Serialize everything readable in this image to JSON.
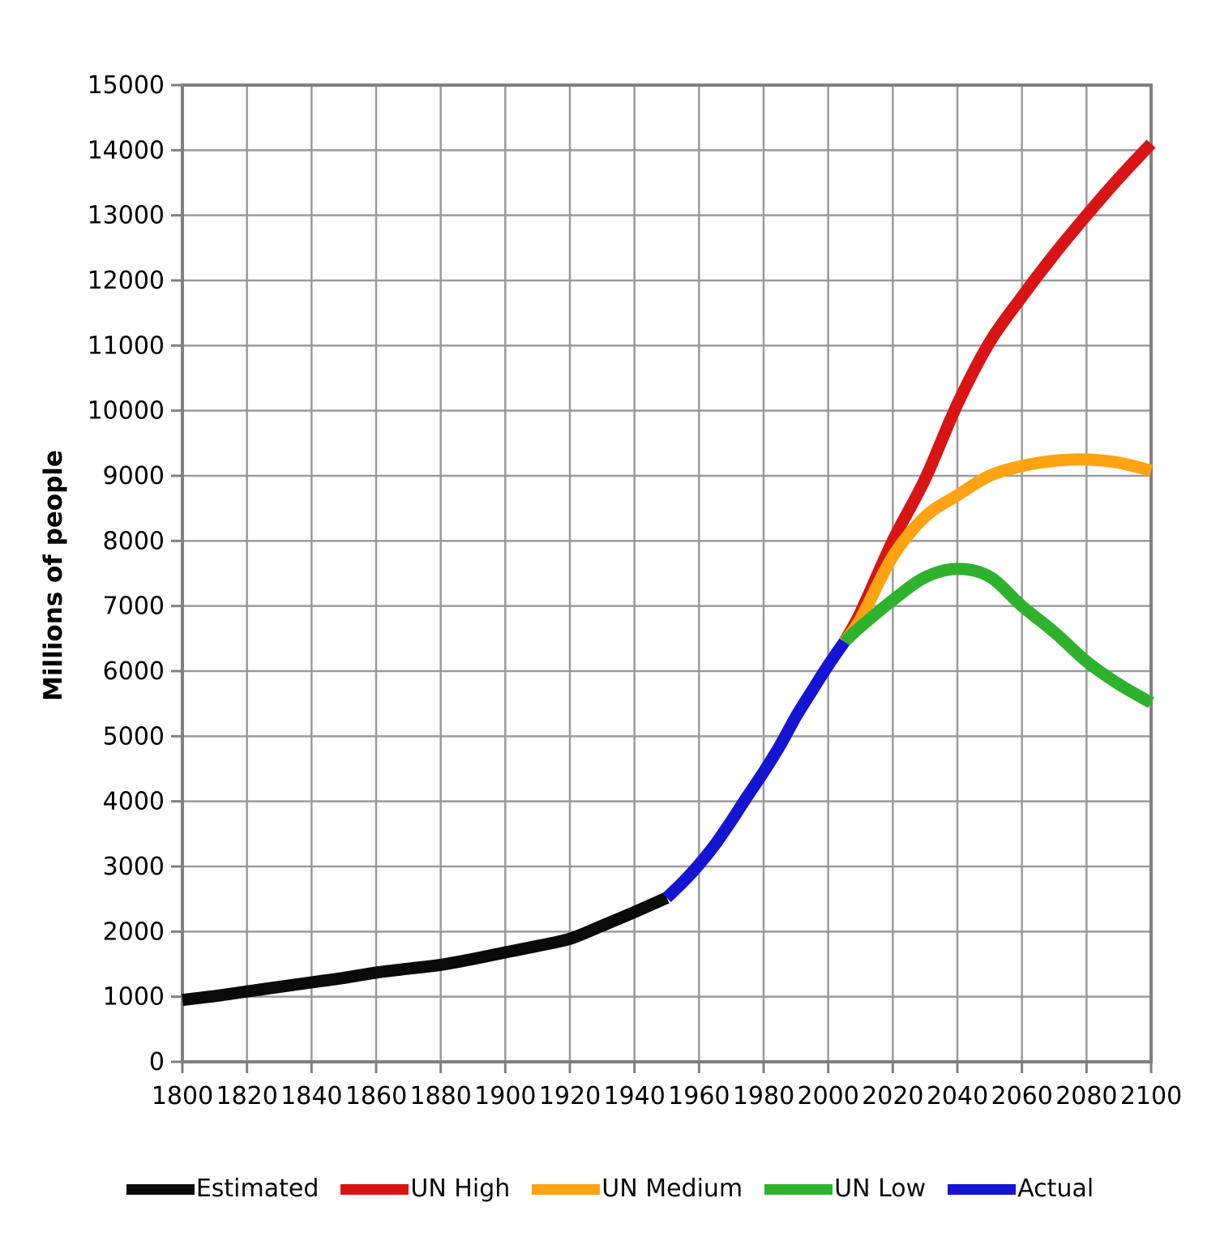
{
  "chart_data": {
    "type": "line",
    "title": "",
    "xlabel": "",
    "ylabel": "Millions of people",
    "xlim": [
      1800,
      2100
    ],
    "ylim": [
      0,
      15000
    ],
    "x_ticks": [
      1800,
      1820,
      1840,
      1860,
      1880,
      1900,
      1920,
      1940,
      1960,
      1980,
      2000,
      2020,
      2040,
      2060,
      2080,
      2100
    ],
    "y_ticks": [
      0,
      1000,
      2000,
      3000,
      4000,
      5000,
      6000,
      7000,
      8000,
      9000,
      10000,
      11000,
      12000,
      13000,
      14000,
      15000
    ],
    "grid": true,
    "legend_position": "bottom",
    "series": [
      {
        "name": "Estimated",
        "color": "#0a0a0a",
        "x": [
          1800,
          1810,
          1820,
          1830,
          1840,
          1850,
          1860,
          1870,
          1880,
          1890,
          1900,
          1910,
          1920,
          1930,
          1940,
          1950
        ],
        "y": [
          950,
          1010,
          1080,
          1150,
          1220,
          1290,
          1370,
          1430,
          1490,
          1580,
          1680,
          1780,
          1890,
          2090,
          2300,
          2520
        ]
      },
      {
        "name": "UN High",
        "color": "#d81414",
        "x": [
          2005,
          2010,
          2020,
          2030,
          2040,
          2050,
          2060,
          2070,
          2080,
          2090,
          2100
        ],
        "y": [
          6450,
          6900,
          8000,
          8950,
          10100,
          11050,
          11750,
          12400,
          13000,
          13570,
          14100
        ]
      },
      {
        "name": "UN Medium",
        "color": "#ffa312",
        "x": [
          2005,
          2010,
          2020,
          2030,
          2040,
          2050,
          2060,
          2070,
          2080,
          2090,
          2100
        ],
        "y": [
          6450,
          6800,
          7760,
          8370,
          8700,
          9000,
          9150,
          9230,
          9250,
          9200,
          9080
        ]
      },
      {
        "name": "UN Low",
        "color": "#2eb22e",
        "x": [
          2005,
          2010,
          2020,
          2030,
          2040,
          2050,
          2060,
          2070,
          2080,
          2090,
          2100
        ],
        "y": [
          6450,
          6680,
          7090,
          7440,
          7570,
          7450,
          7000,
          6600,
          6150,
          5800,
          5515
        ]
      },
      {
        "name": "Actual",
        "color": "#1414d2",
        "x": [
          1950,
          1955,
          1960,
          1965,
          1970,
          1975,
          1980,
          1985,
          1990,
          1995,
          2000,
          2005
        ],
        "y": [
          2520,
          2760,
          3030,
          3340,
          3700,
          4080,
          4450,
          4850,
          5300,
          5700,
          6090,
          6450
        ]
      }
    ],
    "styles": {
      "grid_color": "#9a9a9a",
      "axis_color": "#808080",
      "tick_label_color": "#000000",
      "background": "#ffffff",
      "line_width": 15
    }
  }
}
